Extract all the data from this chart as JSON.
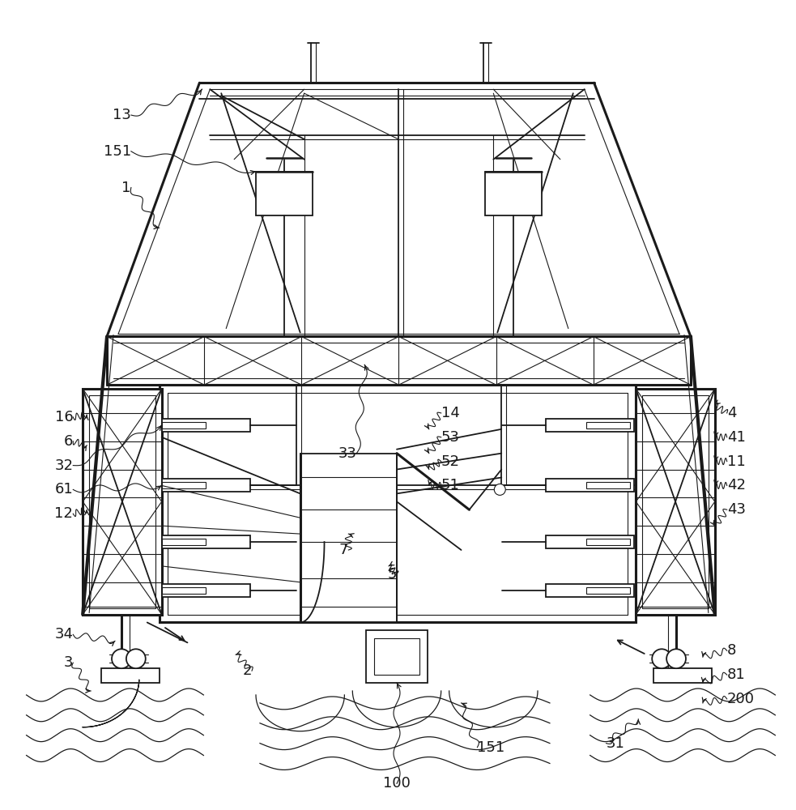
{
  "bg_color": "#ffffff",
  "line_color": "#1a1a1a",
  "fig_width": 9.83,
  "fig_height": 10.0,
  "lw_thin": 0.8,
  "lw_med": 1.3,
  "lw_thick": 2.2,
  "lw_xthick": 3.0
}
